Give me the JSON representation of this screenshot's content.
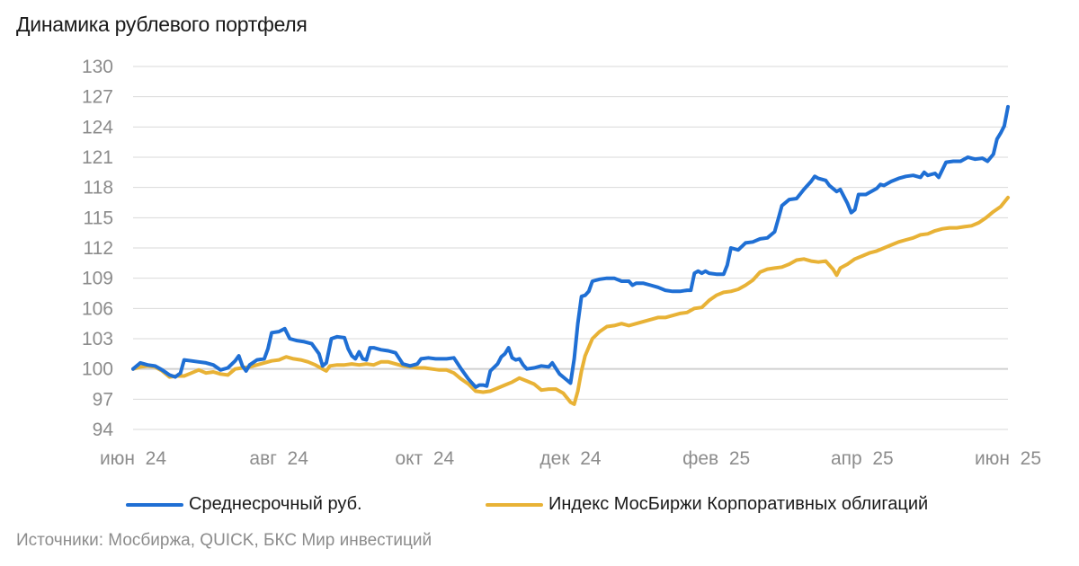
{
  "chart_data": {
    "type": "line",
    "title": "Динамика рублевого портфеля",
    "xlabel": "",
    "ylabel": "",
    "ylim": [
      94,
      130
    ],
    "y_ticks": [
      94,
      97,
      100,
      103,
      106,
      109,
      112,
      115,
      118,
      121,
      124,
      127,
      130
    ],
    "reference_line": 100,
    "x_ticks": [
      {
        "label": "июн  24",
        "month": 0
      },
      {
        "label": "авг  24",
        "month": 2
      },
      {
        "label": "окт  24",
        "month": 4
      },
      {
        "label": "дек  24",
        "month": 6
      },
      {
        "label": "фев  25",
        "month": 8
      },
      {
        "label": "апр  25",
        "month": 10
      },
      {
        "label": "июн  25",
        "month": 12
      }
    ],
    "x_range": [
      0,
      12
    ],
    "series": [
      {
        "name": "Среднесрочный руб.",
        "color": "#1f6fd4",
        "points": [
          [
            0.0,
            100.0
          ],
          [
            0.1,
            100.6
          ],
          [
            0.2,
            100.4
          ],
          [
            0.3,
            100.3
          ],
          [
            0.4,
            99.9
          ],
          [
            0.5,
            99.4
          ],
          [
            0.58,
            99.2
          ],
          [
            0.65,
            99.6
          ],
          [
            0.7,
            100.9
          ],
          [
            0.8,
            100.8
          ],
          [
            0.9,
            100.7
          ],
          [
            1.0,
            100.6
          ],
          [
            1.1,
            100.4
          ],
          [
            1.2,
            99.9
          ],
          [
            1.3,
            100.1
          ],
          [
            1.4,
            100.8
          ],
          [
            1.45,
            101.3
          ],
          [
            1.5,
            100.3
          ],
          [
            1.55,
            99.8
          ],
          [
            1.6,
            100.4
          ],
          [
            1.7,
            100.9
          ],
          [
            1.8,
            101.0
          ],
          [
            1.85,
            102.0
          ],
          [
            1.9,
            103.6
          ],
          [
            2.0,
            103.7
          ],
          [
            2.08,
            104.0
          ],
          [
            2.15,
            103.0
          ],
          [
            2.25,
            102.8
          ],
          [
            2.35,
            102.7
          ],
          [
            2.45,
            102.5
          ],
          [
            2.55,
            101.5
          ],
          [
            2.6,
            100.3
          ],
          [
            2.65,
            100.6
          ],
          [
            2.72,
            103.0
          ],
          [
            2.8,
            103.2
          ],
          [
            2.9,
            103.1
          ],
          [
            2.95,
            102.0
          ],
          [
            3.0,
            101.3
          ],
          [
            3.05,
            101.0
          ],
          [
            3.1,
            101.7
          ],
          [
            3.15,
            101.0
          ],
          [
            3.2,
            100.9
          ],
          [
            3.25,
            102.1
          ],
          [
            3.3,
            102.1
          ],
          [
            3.4,
            101.9
          ],
          [
            3.5,
            101.8
          ],
          [
            3.6,
            101.6
          ],
          [
            3.7,
            100.5
          ],
          [
            3.8,
            100.3
          ],
          [
            3.9,
            100.5
          ],
          [
            3.95,
            101.0
          ],
          [
            4.05,
            101.1
          ],
          [
            4.15,
            101.0
          ],
          [
            4.3,
            101.0
          ],
          [
            4.4,
            101.1
          ],
          [
            4.5,
            100.0
          ],
          [
            4.6,
            99.0
          ],
          [
            4.65,
            98.6
          ],
          [
            4.7,
            98.2
          ],
          [
            4.75,
            98.4
          ],
          [
            4.8,
            98.4
          ],
          [
            4.85,
            98.3
          ],
          [
            4.9,
            99.8
          ],
          [
            5.0,
            100.5
          ],
          [
            5.05,
            101.2
          ],
          [
            5.1,
            101.5
          ],
          [
            5.15,
            102.1
          ],
          [
            5.2,
            101.1
          ],
          [
            5.25,
            100.9
          ],
          [
            5.3,
            101.0
          ],
          [
            5.35,
            100.4
          ],
          [
            5.4,
            100.0
          ],
          [
            5.5,
            100.1
          ],
          [
            5.6,
            100.3
          ],
          [
            5.7,
            100.2
          ],
          [
            5.75,
            100.6
          ],
          [
            5.85,
            99.5
          ],
          [
            5.95,
            98.9
          ],
          [
            6.0,
            98.6
          ],
          [
            6.05,
            101.0
          ],
          [
            6.1,
            104.5
          ],
          [
            6.15,
            107.2
          ],
          [
            6.2,
            107.3
          ],
          [
            6.25,
            107.7
          ],
          [
            6.3,
            108.7
          ],
          [
            6.4,
            108.9
          ],
          [
            6.5,
            109.0
          ],
          [
            6.6,
            109.0
          ],
          [
            6.7,
            108.7
          ],
          [
            6.8,
            108.7
          ],
          [
            6.85,
            108.3
          ],
          [
            6.9,
            108.5
          ],
          [
            7.0,
            108.5
          ],
          [
            7.1,
            108.3
          ],
          [
            7.2,
            108.1
          ],
          [
            7.3,
            107.8
          ],
          [
            7.4,
            107.7
          ],
          [
            7.5,
            107.7
          ],
          [
            7.6,
            107.8
          ],
          [
            7.65,
            107.8
          ],
          [
            7.7,
            109.5
          ],
          [
            7.75,
            109.7
          ],
          [
            7.8,
            109.5
          ],
          [
            7.85,
            109.7
          ],
          [
            7.9,
            109.5
          ],
          [
            8.0,
            109.4
          ],
          [
            8.1,
            109.4
          ],
          [
            8.15,
            110.3
          ],
          [
            8.2,
            112.0
          ],
          [
            8.3,
            111.8
          ],
          [
            8.4,
            112.5
          ],
          [
            8.5,
            112.6
          ],
          [
            8.6,
            112.9
          ],
          [
            8.7,
            113.0
          ],
          [
            8.8,
            113.6
          ],
          [
            8.85,
            114.9
          ],
          [
            8.9,
            116.2
          ],
          [
            9.0,
            116.8
          ],
          [
            9.1,
            116.9
          ],
          [
            9.2,
            117.8
          ],
          [
            9.3,
            118.6
          ],
          [
            9.35,
            119.1
          ],
          [
            9.4,
            118.9
          ],
          [
            9.5,
            118.7
          ],
          [
            9.55,
            118.2
          ],
          [
            9.65,
            117.6
          ],
          [
            9.7,
            117.8
          ],
          [
            9.8,
            116.4
          ],
          [
            9.85,
            115.5
          ],
          [
            9.9,
            115.8
          ],
          [
            9.95,
            117.3
          ],
          [
            10.05,
            117.3
          ],
          [
            10.15,
            117.7
          ],
          [
            10.2,
            117.9
          ],
          [
            10.25,
            118.3
          ],
          [
            10.3,
            118.2
          ],
          [
            10.4,
            118.6
          ],
          [
            10.5,
            118.9
          ],
          [
            10.6,
            119.1
          ],
          [
            10.7,
            119.2
          ],
          [
            10.8,
            119.0
          ],
          [
            10.85,
            119.5
          ],
          [
            10.9,
            119.2
          ],
          [
            11.0,
            119.4
          ],
          [
            11.05,
            119.0
          ],
          [
            11.15,
            120.5
          ],
          [
            11.25,
            120.6
          ],
          [
            11.35,
            120.6
          ],
          [
            11.45,
            121.0
          ],
          [
            11.55,
            120.8
          ],
          [
            11.65,
            120.9
          ],
          [
            11.72,
            120.6
          ],
          [
            11.8,
            121.3
          ],
          [
            11.85,
            122.8
          ],
          [
            11.9,
            123.4
          ],
          [
            11.95,
            124.1
          ],
          [
            12.0,
            126.0
          ]
        ]
      },
      {
        "name": "Индекс МосБиржи Корпоративных облигаций",
        "color": "#e8b236",
        "points": [
          [
            0.0,
            100.0
          ],
          [
            0.1,
            100.2
          ],
          [
            0.2,
            100.3
          ],
          [
            0.3,
            100.2
          ],
          [
            0.4,
            99.8
          ],
          [
            0.5,
            99.2
          ],
          [
            0.6,
            99.3
          ],
          [
            0.7,
            99.3
          ],
          [
            0.8,
            99.6
          ],
          [
            0.9,
            99.9
          ],
          [
            1.0,
            99.6
          ],
          [
            1.1,
            99.7
          ],
          [
            1.2,
            99.5
          ],
          [
            1.3,
            99.4
          ],
          [
            1.4,
            100.0
          ],
          [
            1.5,
            100.1
          ],
          [
            1.6,
            100.2
          ],
          [
            1.7,
            100.4
          ],
          [
            1.8,
            100.6
          ],
          [
            1.9,
            100.8
          ],
          [
            2.0,
            100.9
          ],
          [
            2.1,
            101.2
          ],
          [
            2.2,
            101.0
          ],
          [
            2.3,
            100.9
          ],
          [
            2.4,
            100.7
          ],
          [
            2.5,
            100.4
          ],
          [
            2.6,
            100.0
          ],
          [
            2.65,
            99.8
          ],
          [
            2.7,
            100.3
          ],
          [
            2.8,
            100.4
          ],
          [
            2.9,
            100.4
          ],
          [
            3.0,
            100.5
          ],
          [
            3.1,
            100.4
          ],
          [
            3.2,
            100.5
          ],
          [
            3.3,
            100.4
          ],
          [
            3.4,
            100.7
          ],
          [
            3.5,
            100.7
          ],
          [
            3.6,
            100.5
          ],
          [
            3.7,
            100.3
          ],
          [
            3.8,
            100.2
          ],
          [
            3.9,
            100.1
          ],
          [
            4.0,
            100.1
          ],
          [
            4.1,
            100.0
          ],
          [
            4.2,
            99.9
          ],
          [
            4.3,
            99.9
          ],
          [
            4.4,
            99.6
          ],
          [
            4.5,
            99.0
          ],
          [
            4.6,
            98.5
          ],
          [
            4.7,
            97.8
          ],
          [
            4.8,
            97.7
          ],
          [
            4.9,
            97.8
          ],
          [
            5.0,
            98.1
          ],
          [
            5.1,
            98.4
          ],
          [
            5.2,
            98.7
          ],
          [
            5.3,
            99.1
          ],
          [
            5.4,
            98.8
          ],
          [
            5.5,
            98.5
          ],
          [
            5.6,
            97.9
          ],
          [
            5.7,
            98.0
          ],
          [
            5.8,
            98.0
          ],
          [
            5.9,
            97.6
          ],
          [
            6.0,
            96.7
          ],
          [
            6.05,
            96.5
          ],
          [
            6.1,
            97.8
          ],
          [
            6.15,
            99.8
          ],
          [
            6.2,
            101.3
          ],
          [
            6.3,
            103.0
          ],
          [
            6.4,
            103.7
          ],
          [
            6.5,
            104.2
          ],
          [
            6.6,
            104.3
          ],
          [
            6.7,
            104.5
          ],
          [
            6.8,
            104.3
          ],
          [
            6.9,
            104.5
          ],
          [
            7.0,
            104.7
          ],
          [
            7.1,
            104.9
          ],
          [
            7.2,
            105.1
          ],
          [
            7.3,
            105.1
          ],
          [
            7.4,
            105.3
          ],
          [
            7.5,
            105.5
          ],
          [
            7.6,
            105.6
          ],
          [
            7.7,
            106.0
          ],
          [
            7.8,
            106.1
          ],
          [
            7.9,
            106.8
          ],
          [
            8.0,
            107.3
          ],
          [
            8.1,
            107.6
          ],
          [
            8.2,
            107.7
          ],
          [
            8.3,
            107.9
          ],
          [
            8.4,
            108.3
          ],
          [
            8.5,
            108.8
          ],
          [
            8.6,
            109.6
          ],
          [
            8.7,
            109.9
          ],
          [
            8.8,
            110.0
          ],
          [
            8.9,
            110.1
          ],
          [
            9.0,
            110.4
          ],
          [
            9.1,
            110.8
          ],
          [
            9.2,
            110.9
          ],
          [
            9.3,
            110.7
          ],
          [
            9.4,
            110.6
          ],
          [
            9.5,
            110.7
          ],
          [
            9.6,
            109.9
          ],
          [
            9.65,
            109.3
          ],
          [
            9.7,
            110.0
          ],
          [
            9.8,
            110.4
          ],
          [
            9.9,
            110.9
          ],
          [
            10.0,
            111.2
          ],
          [
            10.1,
            111.5
          ],
          [
            10.2,
            111.7
          ],
          [
            10.3,
            112.0
          ],
          [
            10.4,
            112.3
          ],
          [
            10.5,
            112.6
          ],
          [
            10.6,
            112.8
          ],
          [
            10.7,
            113.0
          ],
          [
            10.8,
            113.3
          ],
          [
            10.9,
            113.4
          ],
          [
            11.0,
            113.7
          ],
          [
            11.1,
            113.9
          ],
          [
            11.2,
            114.0
          ],
          [
            11.3,
            114.0
          ],
          [
            11.4,
            114.1
          ],
          [
            11.5,
            114.2
          ],
          [
            11.6,
            114.5
          ],
          [
            11.7,
            115.0
          ],
          [
            11.8,
            115.6
          ],
          [
            11.9,
            116.1
          ],
          [
            12.0,
            117.0
          ]
        ]
      }
    ]
  },
  "legend": {
    "item_blue": "Среднесрочный руб.",
    "item_gold": "Индекс МосБиржи Корпоративных облигаций"
  },
  "source_note": "Источники: Мосбиржа, QUICK, БКС Мир инвестиций",
  "colors": {
    "grid": "#d9d9d9",
    "baseline": "#d0d0d0",
    "blue": "#1f6fd4",
    "gold": "#e8b236"
  }
}
